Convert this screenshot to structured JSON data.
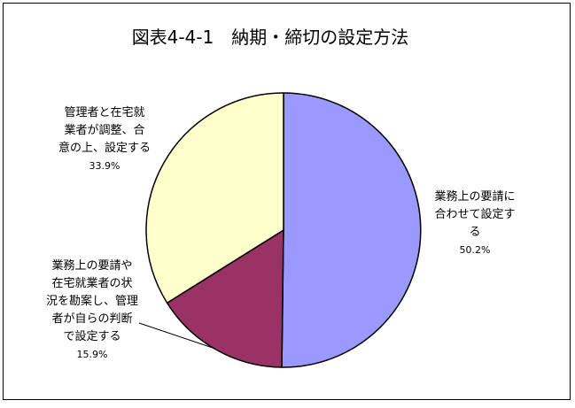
{
  "chart_data": {
    "type": "pie",
    "title": "図表4-4-1　納期・締切の設定方法",
    "slices": [
      {
        "label_lines": [
          "業務上の要請に",
          "合わせて設定す",
          "る"
        ],
        "value": 50.2,
        "value_label": "50.2%",
        "color": "#9999ff"
      },
      {
        "label_lines": [
          "業務上の要請や",
          "在宅就業者の状",
          "況を勘案し、管理",
          "者が自らの判断",
          "で設定する"
        ],
        "value": 15.9,
        "value_label": "15.9%",
        "color": "#993366"
      },
      {
        "label_lines": [
          "管理者と在宅就",
          "業者が調整、合",
          "意の上、設定する"
        ],
        "value": 33.9,
        "value_label": "33.9%",
        "color": "#ffffcc"
      }
    ],
    "start_angle_deg": 0,
    "direction": "clockwise",
    "legend": "none"
  }
}
